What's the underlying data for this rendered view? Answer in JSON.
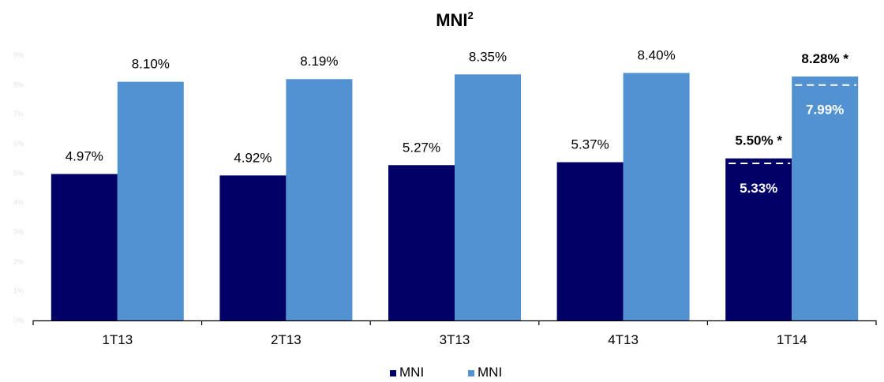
{
  "chart_data": {
    "type": "bar",
    "title": "MNI",
    "title_superscript": "2",
    "categories": [
      "1T13",
      "2T13",
      "3T13",
      "4T13",
      "1T14"
    ],
    "series": [
      {
        "name": "MNI",
        "color": "#000066",
        "values": [
          4.97,
          4.92,
          5.27,
          5.37,
          5.5
        ],
        "labels": [
          "4.97%",
          "4.92%",
          "5.27%",
          "5.37%",
          "5.50% *"
        ]
      },
      {
        "name": "MNI",
        "color": "#5392d1",
        "values": [
          8.1,
          8.19,
          8.35,
          8.4,
          8.28
        ],
        "labels": [
          "8.10%",
          "8.19%",
          "8.35%",
          "8.40%",
          "8.28% *"
        ]
      }
    ],
    "annotations": [
      {
        "category": "1T14",
        "series": 0,
        "value": 5.33,
        "label": "5.33%"
      },
      {
        "category": "1T14",
        "series": 1,
        "value": 7.99,
        "label": "7.99%"
      }
    ],
    "bold_category": "1T14",
    "yticks": [
      "0%",
      "1%",
      "2%",
      "3%",
      "4%",
      "5%",
      "6%",
      "7%",
      "8%",
      "9%"
    ],
    "ylim": [
      0,
      9
    ],
    "grid": false,
    "legend_position": "bottom"
  }
}
